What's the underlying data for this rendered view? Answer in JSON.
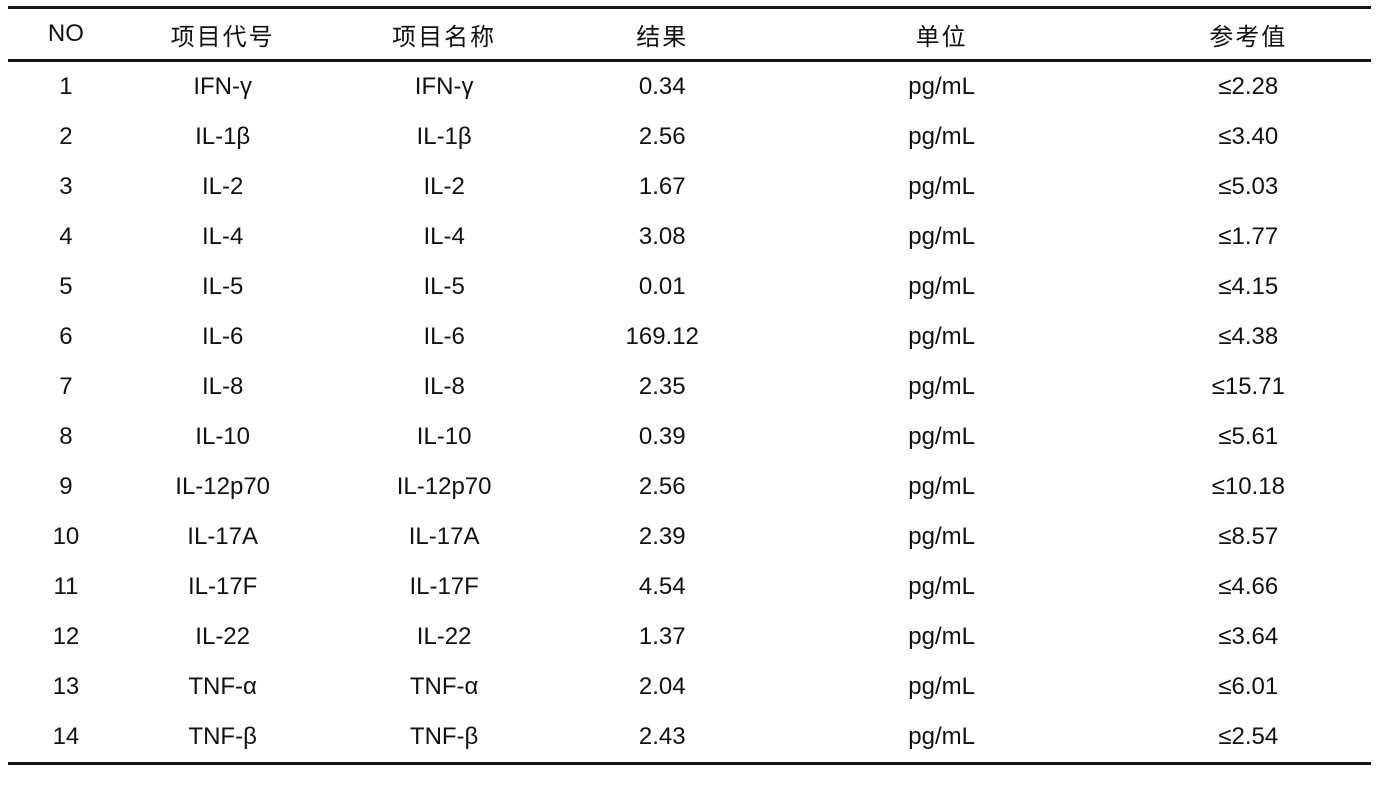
{
  "document": {
    "kind": "cytokine-lab-result-table",
    "unit_common": "pg/mL"
  },
  "colors": {
    "text": "#111111",
    "border": "#161616",
    "background": "#ffffff"
  },
  "table": {
    "columns": [
      {
        "key": "no",
        "label": "NO"
      },
      {
        "key": "code",
        "label": "项目代号"
      },
      {
        "key": "name",
        "label": "项目名称"
      },
      {
        "key": "result",
        "label": "结果"
      },
      {
        "key": "unit",
        "label": "单位"
      },
      {
        "key": "ref",
        "label": "参考值"
      }
    ],
    "rows": [
      {
        "no": "1",
        "code": "IFN-γ",
        "name": "IFN-γ",
        "result": "0.34",
        "unit": "pg/mL",
        "ref": "≤2.28"
      },
      {
        "no": "2",
        "code": "IL-1β",
        "name": "IL-1β",
        "result": "2.56",
        "unit": "pg/mL",
        "ref": "≤3.40"
      },
      {
        "no": "3",
        "code": "IL-2",
        "name": "IL-2",
        "result": "1.67",
        "unit": "pg/mL",
        "ref": "≤5.03"
      },
      {
        "no": "4",
        "code": "IL-4",
        "name": "IL-4",
        "result": "3.08",
        "unit": "pg/mL",
        "ref": "≤1.77"
      },
      {
        "no": "5",
        "code": "IL-5",
        "name": "IL-5",
        "result": "0.01",
        "unit": "pg/mL",
        "ref": "≤4.15"
      },
      {
        "no": "6",
        "code": "IL-6",
        "name": "IL-6",
        "result": "169.12",
        "unit": "pg/mL",
        "ref": "≤4.38"
      },
      {
        "no": "7",
        "code": "IL-8",
        "name": "IL-8",
        "result": "2.35",
        "unit": "pg/mL",
        "ref": "≤15.71"
      },
      {
        "no": "8",
        "code": "IL-10",
        "name": "IL-10",
        "result": "0.39",
        "unit": "pg/mL",
        "ref": "≤5.61"
      },
      {
        "no": "9",
        "code": "IL-12p70",
        "name": "IL-12p70",
        "result": "2.56",
        "unit": "pg/mL",
        "ref": "≤10.18"
      },
      {
        "no": "10",
        "code": "IL-17A",
        "name": "IL-17A",
        "result": "2.39",
        "unit": "pg/mL",
        "ref": "≤8.57"
      },
      {
        "no": "11",
        "code": "IL-17F",
        "name": "IL-17F",
        "result": "4.54",
        "unit": "pg/mL",
        "ref": "≤4.66"
      },
      {
        "no": "12",
        "code": "IL-22",
        "name": "IL-22",
        "result": "1.37",
        "unit": "pg/mL",
        "ref": "≤3.64"
      },
      {
        "no": "13",
        "code": "TNF-α",
        "name": "TNF-α",
        "result": "2.04",
        "unit": "pg/mL",
        "ref": "≤6.01"
      },
      {
        "no": "14",
        "code": "TNF-β",
        "name": "TNF-β",
        "result": "2.43",
        "unit": "pg/mL",
        "ref": "≤2.54"
      }
    ]
  }
}
